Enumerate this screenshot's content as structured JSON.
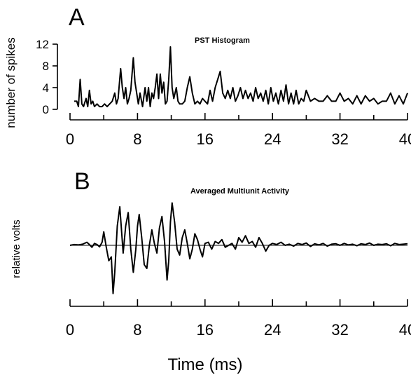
{
  "chart_data": [
    {
      "type": "line",
      "panel": "A",
      "title": "PST Histogram",
      "xlabel": "",
      "ylabel": "number of spikes",
      "xlim": [
        0,
        40
      ],
      "ylim": [
        0,
        12
      ],
      "xticks": [
        0,
        8,
        16,
        24,
        32,
        40
      ],
      "yticks": [
        0,
        4,
        8,
        12
      ],
      "grid": false,
      "x": [
        0.5,
        0.8,
        1.0,
        1.2,
        1.4,
        1.6,
        1.9,
        2.1,
        2.3,
        2.5,
        2.7,
        2.9,
        3.2,
        3.5,
        3.8,
        4.1,
        4.4,
        4.7,
        5.0,
        5.3,
        5.5,
        5.7,
        6.0,
        6.2,
        6.4,
        6.6,
        6.8,
        7.0,
        7.2,
        7.5,
        7.7,
        7.9,
        8.1,
        8.3,
        8.6,
        8.9,
        9.1,
        9.3,
        9.5,
        9.7,
        9.9,
        10.1,
        10.3,
        10.5,
        10.7,
        10.9,
        11.1,
        11.3,
        11.5,
        11.7,
        11.9,
        12.1,
        12.3,
        12.6,
        12.8,
        13.0,
        13.3,
        13.6,
        13.9,
        14.2,
        14.5,
        14.8,
        15.1,
        15.4,
        15.7,
        16.0,
        16.3,
        16.6,
        16.9,
        17.2,
        17.5,
        17.8,
        18.1,
        18.4,
        18.7,
        19.0,
        19.3,
        19.6,
        19.9,
        20.2,
        20.5,
        20.8,
        21.1,
        21.4,
        21.7,
        22.0,
        22.3,
        22.6,
        22.9,
        23.2,
        23.5,
        23.8,
        24.1,
        24.4,
        24.7,
        25.0,
        25.3,
        25.6,
        25.9,
        26.2,
        26.5,
        26.8,
        27.1,
        27.4,
        27.7,
        28.0,
        28.5,
        29.0,
        29.5,
        30.0,
        30.5,
        31.0,
        31.5,
        32.0,
        32.5,
        33.0,
        33.5,
        34.0,
        34.5,
        35.0,
        35.5,
        36.0,
        36.5,
        37.0,
        37.5,
        38.0,
        38.5,
        39.0,
        39.5,
        40.0
      ],
      "values": [
        1.5,
        1.5,
        0.5,
        5.5,
        1,
        0.5,
        2,
        0.5,
        3.5,
        1,
        1.5,
        0.5,
        1,
        0.5,
        0.5,
        1,
        0.5,
        1,
        1.5,
        3,
        1,
        2,
        7.5,
        4,
        2,
        4,
        1,
        2,
        3.5,
        9.5,
        5,
        3,
        1,
        3,
        0.5,
        4,
        1.5,
        4,
        0.5,
        3,
        2,
        4,
        6.5,
        2,
        6.5,
        3,
        5,
        1,
        1.5,
        5.5,
        11.5,
        4,
        2,
        4,
        1.5,
        1,
        1,
        1.5,
        4,
        6,
        3,
        1,
        1.5,
        1,
        2,
        1.5,
        1,
        3.5,
        1.5,
        4,
        5.5,
        7,
        3,
        2,
        3.5,
        2,
        4,
        1.5,
        2.5,
        4,
        2,
        3.5,
        2,
        3,
        1.5,
        4,
        2,
        3,
        1.5,
        3.5,
        1,
        4,
        1.5,
        3,
        1,
        3.5,
        1.5,
        4.5,
        1,
        3,
        1,
        3.5,
        1,
        2,
        1.5,
        3.5,
        1.5,
        2,
        1.5,
        1.5,
        2.5,
        1.5,
        1.5,
        3,
        1.5,
        2,
        1,
        2.5,
        1,
        2.5,
        1.5,
        2,
        1,
        1.5,
        1.5,
        3,
        1,
        2.5,
        1,
        3
      ]
    },
    {
      "type": "line",
      "panel": "B",
      "title": "Averaged Multiunit Activity",
      "xlabel": "Time (ms)",
      "ylabel": "relative volts",
      "xlim": [
        0,
        40
      ],
      "ylim": [
        -1,
        1
      ],
      "xticks": [
        0,
        8,
        16,
        24,
        32,
        40
      ],
      "grid": false,
      "baseline": 0,
      "x": [
        0,
        0.5,
        1.0,
        1.5,
        2.0,
        2.3,
        2.6,
        2.9,
        3.2,
        3.5,
        3.8,
        4.0,
        4.3,
        4.6,
        4.9,
        5.1,
        5.3,
        5.6,
        5.9,
        6.1,
        6.3,
        6.6,
        6.9,
        7.2,
        7.5,
        7.8,
        8.0,
        8.2,
        8.5,
        8.8,
        9.1,
        9.4,
        9.7,
        10.0,
        10.3,
        10.6,
        10.9,
        11.2,
        11.5,
        11.7,
        11.9,
        12.1,
        12.4,
        12.7,
        13.0,
        13.3,
        13.6,
        13.9,
        14.2,
        14.5,
        14.8,
        15.1,
        15.4,
        15.7,
        16.0,
        16.4,
        16.8,
        17.2,
        17.6,
        18.0,
        18.4,
        18.8,
        19.2,
        19.6,
        20.0,
        20.4,
        20.8,
        21.2,
        21.6,
        22.0,
        22.4,
        22.8,
        23.2,
        23.6,
        24.0,
        24.5,
        25.0,
        25.5,
        26.0,
        26.5,
        27.0,
        27.5,
        28.0,
        28.5,
        29.0,
        29.5,
        30.0,
        30.5,
        31.0,
        31.5,
        32.0,
        32.5,
        33.0,
        33.5,
        34.0,
        34.5,
        35.0,
        35.5,
        36.0,
        36.5,
        37.0,
        37.5,
        38.0,
        38.5,
        39.0,
        39.5,
        40.0
      ],
      "values": [
        0,
        0.02,
        0.01,
        0.03,
        0.08,
        0.02,
        -0.05,
        0.05,
        0.02,
        -0.04,
        0.08,
        0.35,
        -0.05,
        -0.4,
        -0.3,
        -1.25,
        -0.7,
        0.5,
        1.0,
        0.4,
        -0.2,
        0.5,
        0.85,
        -0.1,
        -0.7,
        -0.1,
        0.5,
        0.8,
        0.2,
        -0.5,
        -0.6,
        0.0,
        0.4,
        0.05,
        -0.2,
        0.45,
        0.75,
        0.1,
        -0.9,
        -0.4,
        0.6,
        1.1,
        0.6,
        -0.1,
        -0.25,
        0.2,
        0.4,
        0.05,
        -0.35,
        -0.1,
        0.3,
        0.15,
        -0.1,
        -0.3,
        0.05,
        0.08,
        -0.1,
        0.1,
        0.05,
        0.15,
        -0.05,
        0.0,
        0.05,
        -0.1,
        0.2,
        0.08,
        0.25,
        0.05,
        0.1,
        -0.05,
        0.2,
        0.05,
        -0.15,
        0.0,
        0.05,
        0.02,
        0.08,
        0.0,
        0.03,
        -0.02,
        0.05,
        0.02,
        0.06,
        -0.03,
        0.04,
        0.01,
        0.05,
        -0.02,
        0.03,
        0.04,
        0.0,
        0.05,
        0.01,
        0.03,
        -0.01,
        0.04,
        0.02,
        0.06,
        0.0,
        0.03,
        0.02,
        0.04,
        -0.01,
        0.05,
        0.02,
        0.03,
        0.04
      ]
    }
  ],
  "panels": {
    "a": {
      "letter": "A",
      "title": "PST Histogram",
      "ylabel": "number of spikes"
    },
    "b": {
      "letter": "B",
      "title": "Averaged Multiunit Activity",
      "ylabel": "relative volts",
      "xlabel": "Time (ms)"
    }
  }
}
